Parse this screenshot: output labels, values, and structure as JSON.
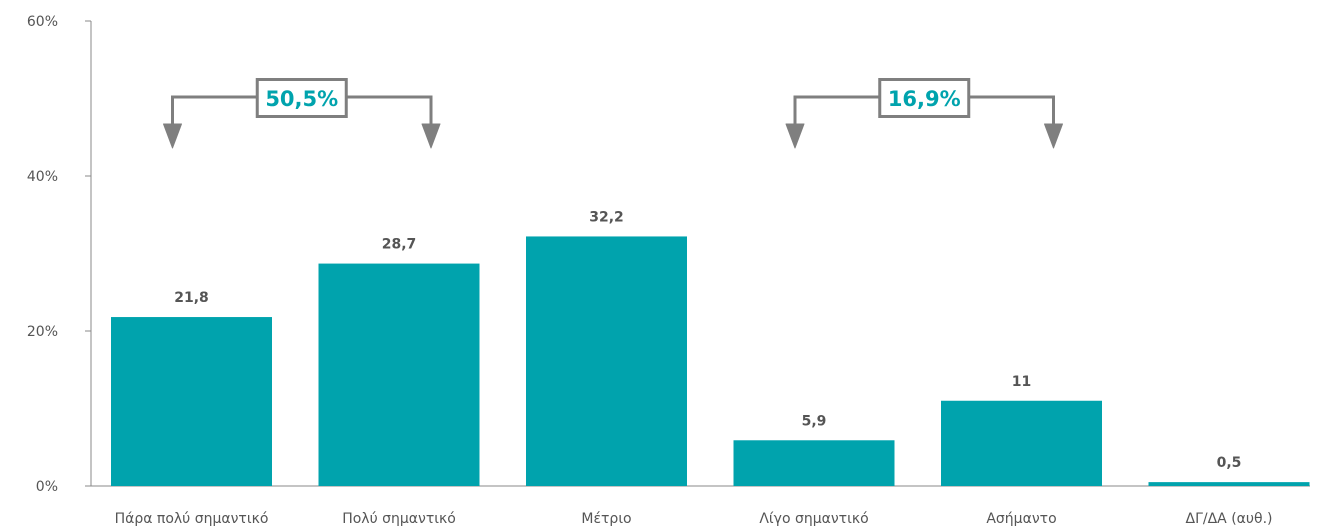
{
  "chart_data": {
    "type": "bar",
    "categories": [
      "Πάρα πολύ σημαντικό",
      "Πολύ σημαντικό",
      "Μέτριο",
      "Λίγο σημαντικό",
      "Ασήμαντο",
      "ΔΓ/ΔΑ (αυθ.)"
    ],
    "values": [
      21.8,
      28.7,
      32.2,
      5.9,
      11,
      0.5
    ],
    "value_labels": [
      "21,8",
      "28,7",
      "32,2",
      "5,9",
      "11",
      "0,5"
    ],
    "yticks": [
      "0%",
      "20%",
      "40%",
      "60%"
    ],
    "ylim": [
      0,
      60
    ],
    "grid": false,
    "legend": "none",
    "annotations": [
      {
        "label": "50,5%",
        "from_index": 0,
        "to_index": 1
      },
      {
        "label": "16,9%",
        "from_index": 3,
        "to_index": 4
      }
    ],
    "colors": {
      "bar": "#00A3AD",
      "axis": "#888888",
      "text": "#555555",
      "arrow": "#7F7F7F",
      "annotation_text": "#00A3AD"
    }
  }
}
